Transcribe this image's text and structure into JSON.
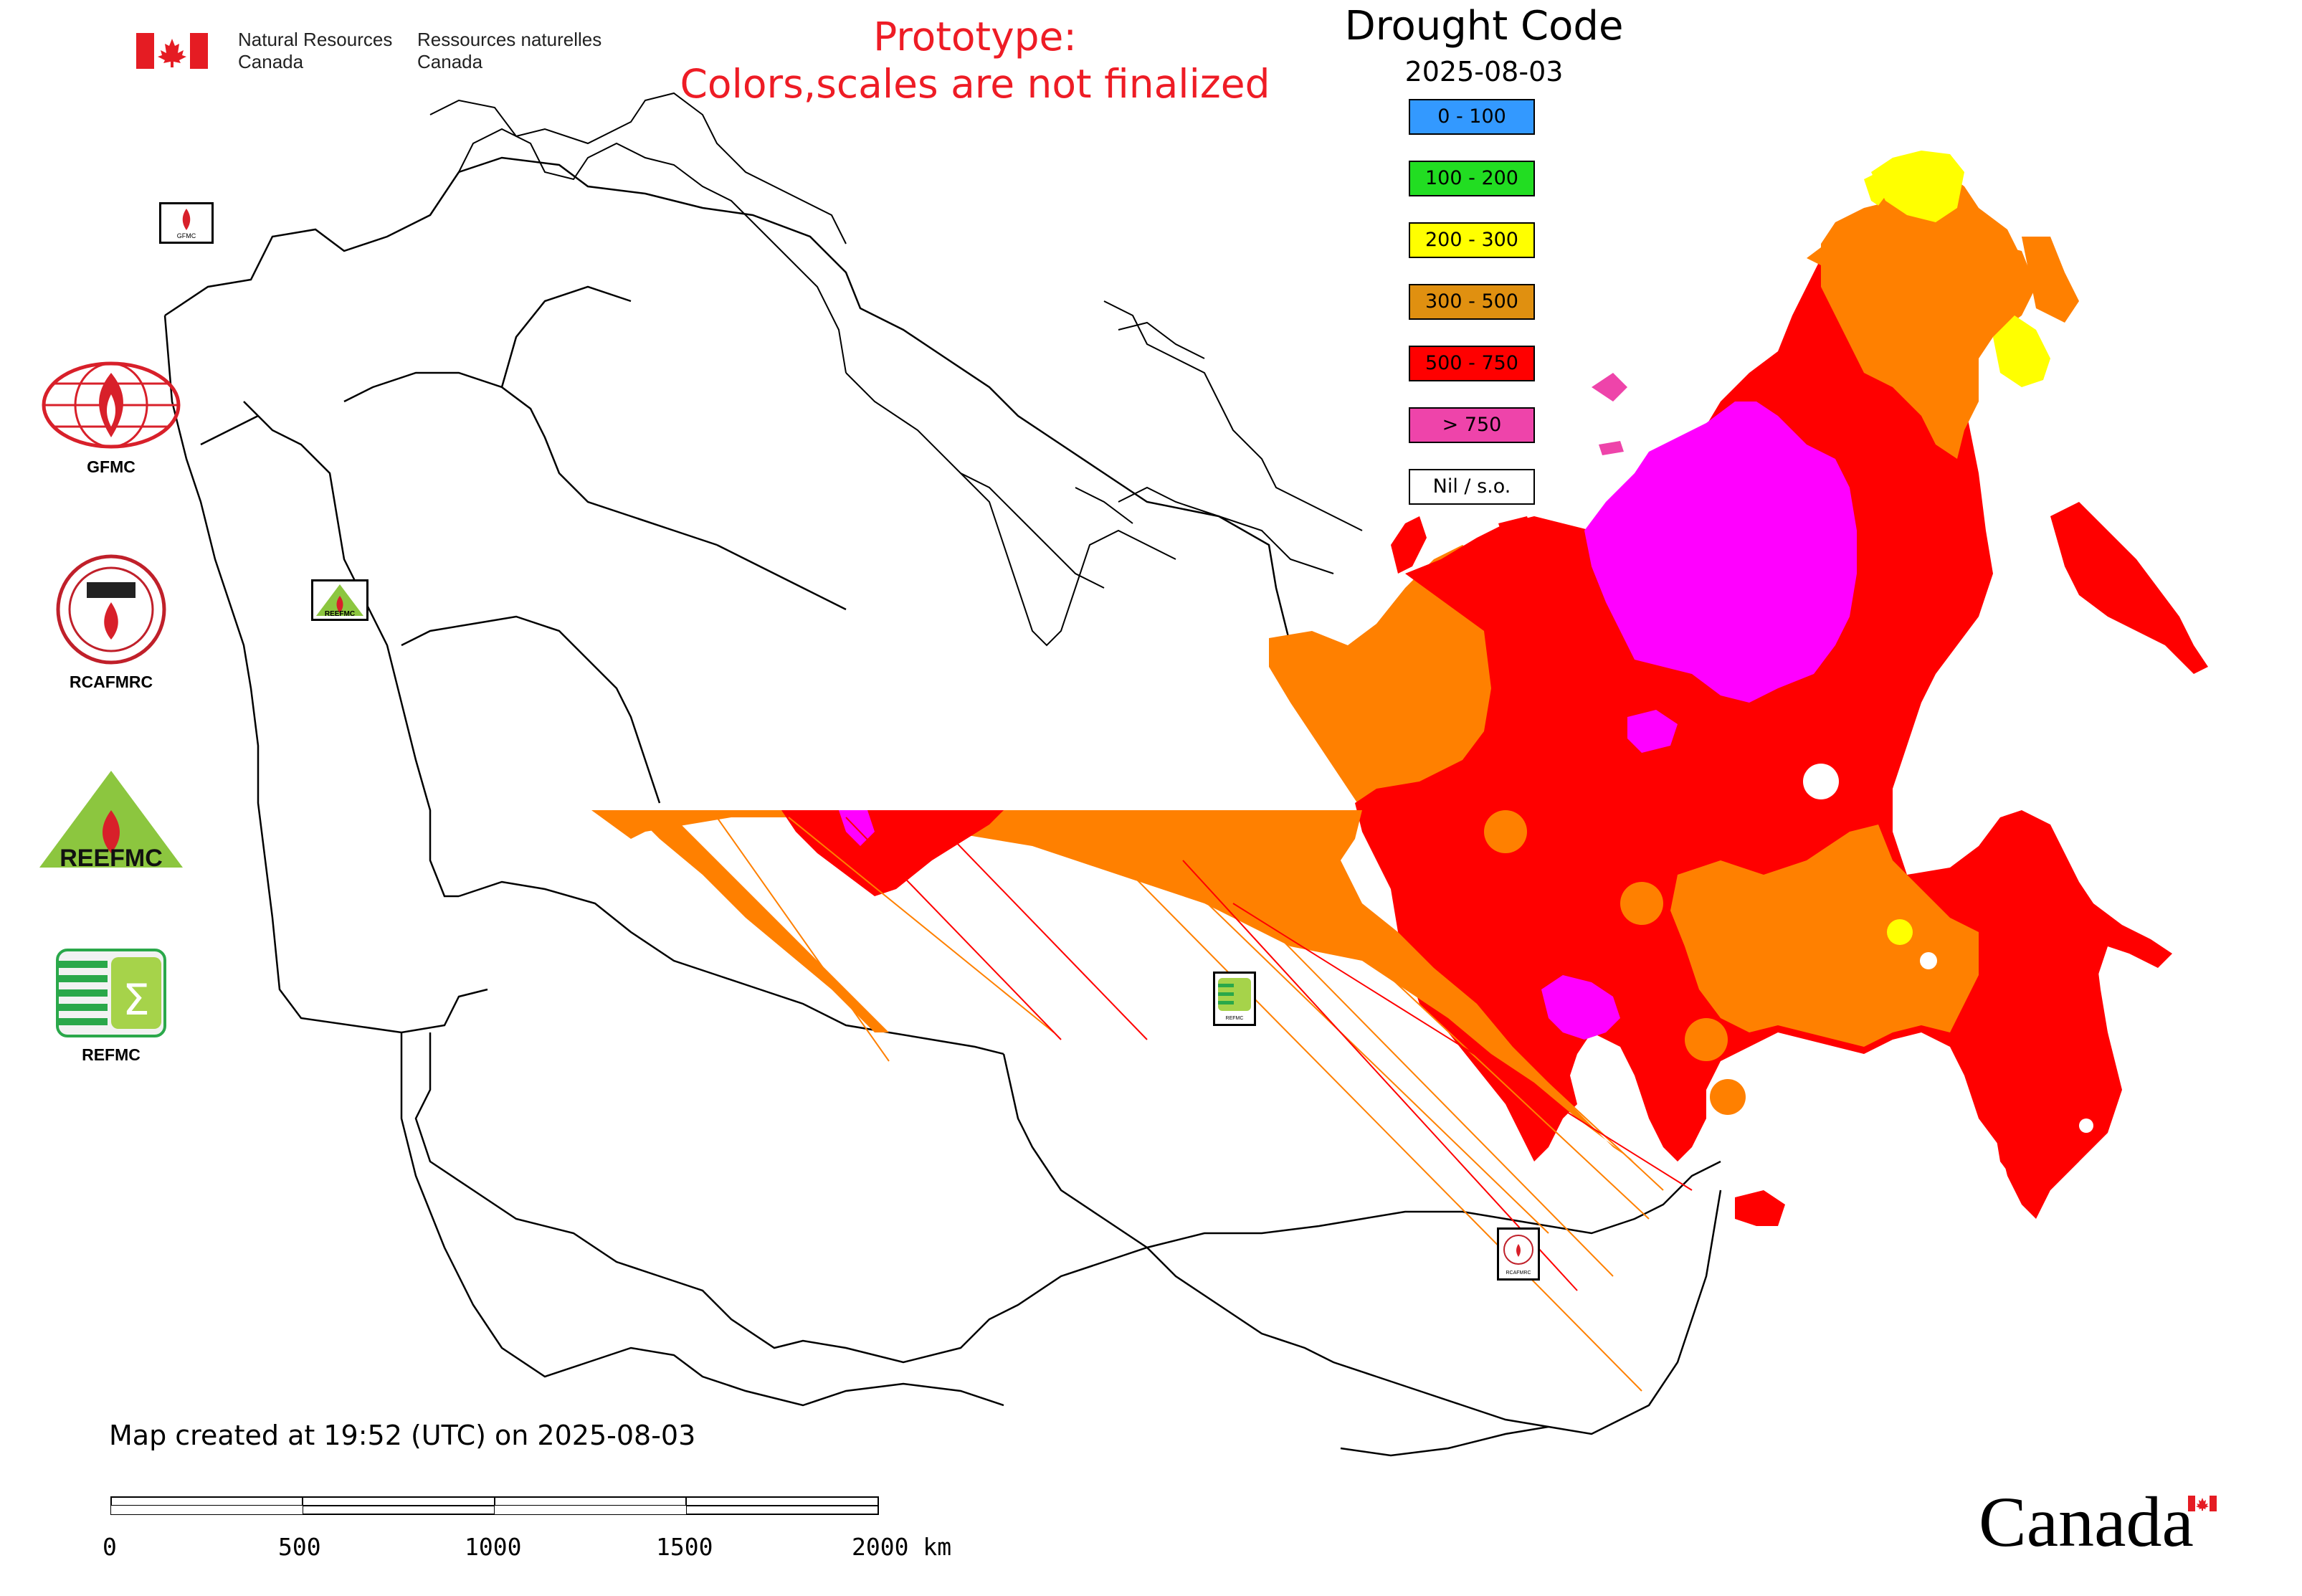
{
  "header": {
    "nrcan_en": [
      "Natural Resources",
      "Canada"
    ],
    "nrcan_fr": [
      "Ressources naturelles",
      "Canada"
    ],
    "prototype_lines": [
      "Prototype:",
      "Colors,scales are not finalized"
    ],
    "title": "Drought Code",
    "date": "2025-08-03"
  },
  "legend": {
    "items": [
      {
        "label": "0 - 100",
        "color": "#3399ff"
      },
      {
        "label": "100 - 200",
        "color": "#22dd22"
      },
      {
        "label": "200 - 300",
        "color": "#ffff00"
      },
      {
        "label": "300 - 500",
        "color": "#e09010"
      },
      {
        "label": "500 - 750",
        "color": "#ff0000"
      },
      {
        "label": "> 750",
        "color": "#ee44aa"
      },
      {
        "label": "Nil / s.o.",
        "color": "#ffffff"
      }
    ]
  },
  "map_colors": {
    "level_300_500": "#ff8000",
    "level_500_750": "#ff0000",
    "level_over_750": "#ff00ff",
    "level_200_300": "#ffff00",
    "border": "#000000"
  },
  "partner_logos": [
    {
      "label": "GFMC",
      "icon": "gfmc-logo-icon"
    },
    {
      "label": "RCAFMRC",
      "icon": "rcafmrc-logo-icon"
    },
    {
      "label": "",
      "icon": "reefmc-logo-icon",
      "wordmark": "REEFMC"
    },
    {
      "label": "REFMC",
      "icon": "refmc-logo-icon"
    }
  ],
  "map_markers": [
    {
      "icon": "gfmc-marker-icon",
      "text": "GFMC"
    },
    {
      "icon": "reefmc-marker-icon",
      "text": "REEFMC"
    },
    {
      "icon": "refmc-marker-icon",
      "text": "REFMC"
    },
    {
      "icon": "rcafmrc-marker-icon",
      "text": "RCAFMRC"
    }
  ],
  "footer": {
    "created": "Map created at 19:52 (UTC) on 2025-08-03",
    "scale_labels": [
      "0",
      "500",
      "1000",
      "1500",
      "2000 km"
    ],
    "wordmark": "Canada"
  }
}
